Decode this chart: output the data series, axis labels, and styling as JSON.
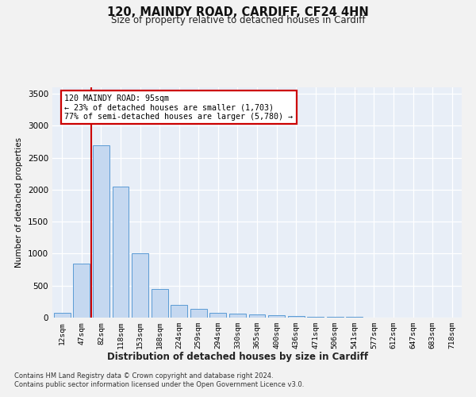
{
  "title1": "120, MAINDY ROAD, CARDIFF, CF24 4HN",
  "title2": "Size of property relative to detached houses in Cardiff",
  "xlabel": "Distribution of detached houses by size in Cardiff",
  "ylabel": "Number of detached properties",
  "footnote1": "Contains HM Land Registry data © Crown copyright and database right 2024.",
  "footnote2": "Contains public sector information licensed under the Open Government Licence v3.0.",
  "bar_color": "#c5d8f0",
  "bar_edge_color": "#5b9bd5",
  "annotation_box_edgecolor": "#cc0000",
  "vline_color": "#cc0000",
  "plot_bg_color": "#e8eef7",
  "fig_bg_color": "#f2f2f2",
  "categories": [
    "12sqm",
    "47sqm",
    "82sqm",
    "118sqm",
    "153sqm",
    "188sqm",
    "224sqm",
    "259sqm",
    "294sqm",
    "330sqm",
    "365sqm",
    "400sqm",
    "436sqm",
    "471sqm",
    "506sqm",
    "541sqm",
    "577sqm",
    "612sqm",
    "647sqm",
    "683sqm",
    "718sqm"
  ],
  "values": [
    75,
    850,
    2700,
    2050,
    1000,
    450,
    200,
    135,
    80,
    60,
    50,
    35,
    20,
    15,
    10,
    8,
    6,
    5,
    4,
    3,
    2
  ],
  "annotation_line1": "120 MAINDY ROAD: 95sqm",
  "annotation_line2": "← 23% of detached houses are smaller (1,703)",
  "annotation_line3": "77% of semi-detached houses are larger (5,780) →",
  "vline_x_index": 1.5,
  "ylim_max": 3600,
  "yticks": [
    0,
    500,
    1000,
    1500,
    2000,
    2500,
    3000,
    3500
  ]
}
